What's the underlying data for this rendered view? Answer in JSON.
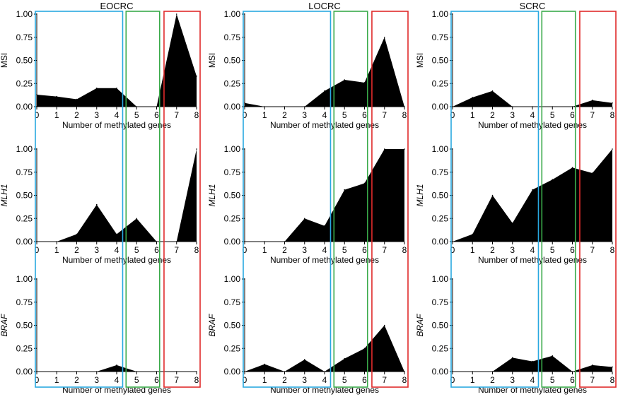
{
  "figure": {
    "column_titles": [
      "EOCRC",
      "LOCRC",
      "SCRC"
    ],
    "x_axis_label": "Number of methylated genes",
    "row_labels": [
      "MSI",
      "MLH1",
      "BRAF"
    ],
    "row_label_italic": [
      false,
      true,
      true
    ],
    "box_colors": {
      "blue": "#29a8e0",
      "green": "#3aaa4a",
      "red": "#e02b2b"
    },
    "fill_color": "#000000"
  },
  "chart_data": [
    {
      "type": "area",
      "panel": "EOCRC-MSI",
      "title": "EOCRC",
      "xlabel": "Number of methylated genes",
      "ylabel": "MSI",
      "x": [
        0,
        1,
        2,
        3,
        4,
        5,
        6,
        7,
        8
      ],
      "y": [
        0.13,
        0.11,
        0.08,
        0.2,
        0.2,
        0.0,
        0.0,
        1.0,
        0.33
      ],
      "xticks": [
        0,
        1,
        2,
        3,
        4,
        5,
        6,
        7,
        8
      ],
      "yticks": [
        "0.00",
        "0.25",
        "0.50",
        "0.75",
        "1.00"
      ],
      "ylim": [
        0,
        1
      ]
    },
    {
      "type": "area",
      "panel": "LOCRC-MSI",
      "title": "LOCRC",
      "xlabel": "Number of methylated genes",
      "ylabel": "MSI",
      "x": [
        0,
        1,
        2,
        3,
        4,
        5,
        6,
        7,
        8
      ],
      "y": [
        0.04,
        0.0,
        0.0,
        0.0,
        0.17,
        0.29,
        0.26,
        0.75,
        0.0
      ],
      "xticks": [
        0,
        1,
        2,
        3,
        4,
        5,
        6,
        7,
        8
      ],
      "yticks": [
        "0.00",
        "0.25",
        "0.50",
        "0.75",
        "1.00"
      ],
      "ylim": [
        0,
        1
      ]
    },
    {
      "type": "area",
      "panel": "SCRC-MSI",
      "title": "SCRC",
      "xlabel": "Number of methylated genes",
      "ylabel": "MSI",
      "x": [
        0,
        1,
        2,
        3,
        4,
        5,
        6,
        7,
        8
      ],
      "y": [
        0.0,
        0.1,
        0.17,
        0.0,
        0.0,
        0.0,
        0.0,
        0.07,
        0.04
      ],
      "xticks": [
        0,
        1,
        2,
        3,
        4,
        5,
        6,
        7,
        8
      ],
      "yticks": [
        "0.00",
        "0.25",
        "0.50",
        "0.75",
        "1.00"
      ],
      "ylim": [
        0,
        1
      ]
    },
    {
      "type": "area",
      "panel": "EOCRC-MLH1",
      "title": "",
      "xlabel": "Number of methylated genes",
      "ylabel": "MLH1",
      "x": [
        0,
        1,
        2,
        3,
        4,
        5,
        6,
        7,
        8
      ],
      "y": [
        0.0,
        0.0,
        0.08,
        0.4,
        0.08,
        0.25,
        0.0,
        0.0,
        1.0
      ],
      "xticks": [
        0,
        1,
        2,
        3,
        4,
        5,
        6,
        7,
        8
      ],
      "yticks": [
        "0.00",
        "0.25",
        "0.50",
        "0.75",
        "1.00"
      ],
      "ylim": [
        0,
        1
      ]
    },
    {
      "type": "area",
      "panel": "LOCRC-MLH1",
      "title": "",
      "xlabel": "Number of methylated genes",
      "ylabel": "MLH1",
      "x": [
        0,
        1,
        2,
        3,
        4,
        5,
        6,
        7,
        8
      ],
      "y": [
        0.0,
        0.0,
        0.0,
        0.25,
        0.17,
        0.56,
        0.63,
        1.0,
        1.0
      ],
      "xticks": [
        0,
        1,
        2,
        3,
        4,
        5,
        6,
        7,
        8
      ],
      "yticks": [
        "0.00",
        "0.25",
        "0.50",
        "0.75",
        "1.00"
      ],
      "ylim": [
        0,
        1
      ]
    },
    {
      "type": "area",
      "panel": "SCRC-MLH1",
      "title": "",
      "xlabel": "Number of methylated genes",
      "ylabel": "MLH1",
      "x": [
        0,
        1,
        2,
        3,
        4,
        5,
        6,
        7,
        8
      ],
      "y": [
        0.0,
        0.08,
        0.5,
        0.2,
        0.56,
        0.67,
        0.8,
        0.74,
        1.0
      ],
      "xticks": [
        0,
        1,
        2,
        3,
        4,
        5,
        6,
        7,
        8
      ],
      "yticks": [
        "0.00",
        "0.25",
        "0.50",
        "0.75",
        "1.00"
      ],
      "ylim": [
        0,
        1
      ]
    },
    {
      "type": "area",
      "panel": "EOCRC-BRAF",
      "title": "",
      "xlabel": "Number of methylated genes",
      "ylabel": "BRAF",
      "x": [
        0,
        1,
        2,
        3,
        4,
        5,
        6,
        7,
        8
      ],
      "y": [
        0.0,
        0.0,
        0.0,
        0.0,
        0.07,
        0.0,
        0.0,
        0.0,
        0.0
      ],
      "xticks": [
        0,
        1,
        2,
        3,
        4,
        5,
        6,
        7,
        8
      ],
      "yticks": [
        "0.00",
        "0.25",
        "0.50",
        "0.75",
        "1.00"
      ],
      "ylim": [
        0,
        1
      ]
    },
    {
      "type": "area",
      "panel": "LOCRC-BRAF",
      "title": "",
      "xlabel": "Number of methylated genes",
      "ylabel": "BRAF",
      "x": [
        0,
        1,
        2,
        3,
        4,
        5,
        6,
        7,
        8
      ],
      "y": [
        0.0,
        0.08,
        0.0,
        0.13,
        0.0,
        0.14,
        0.25,
        0.5,
        0.0
      ],
      "xticks": [
        0,
        1,
        2,
        3,
        4,
        5,
        6,
        7,
        8
      ],
      "yticks": [
        "0.00",
        "0.25",
        "0.50",
        "0.75",
        "1.00"
      ],
      "ylim": [
        0,
        1
      ]
    },
    {
      "type": "area",
      "panel": "SCRC-BRAF",
      "title": "",
      "xlabel": "Number of methylated genes",
      "ylabel": "BRAF",
      "x": [
        0,
        1,
        2,
        3,
        4,
        5,
        6,
        7,
        8
      ],
      "y": [
        0.0,
        0.0,
        0.0,
        0.15,
        0.11,
        0.17,
        0.0,
        0.07,
        0.05
      ],
      "xticks": [
        0,
        1,
        2,
        3,
        4,
        5,
        6,
        7,
        8
      ],
      "yticks": [
        "0.00",
        "0.25",
        "0.50",
        "0.75",
        "1.00"
      ],
      "ylim": [
        0,
        1
      ]
    }
  ]
}
